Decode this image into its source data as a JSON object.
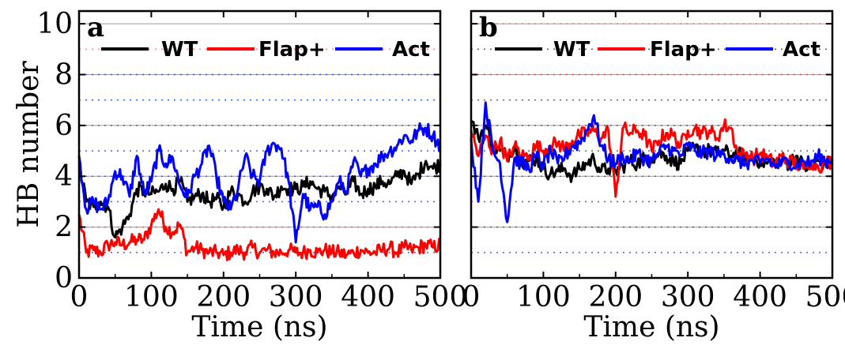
{
  "chart_data": [
    {
      "type": "line",
      "panel_label": "a",
      "xlabel": "Time (ns)",
      "ylabel": "HB number",
      "xlim": [
        0,
        500
      ],
      "ylim": [
        0,
        10.5
      ],
      "xticks": [
        "0",
        "100",
        "200",
        "300",
        "400",
        "500"
      ],
      "yticks": [
        "0",
        "2",
        "4",
        "6",
        "8",
        "10"
      ],
      "grid": "horizontal dotted",
      "legend_placement": "top",
      "x": [
        0,
        10,
        20,
        30,
        40,
        50,
        60,
        70,
        80,
        90,
        100,
        110,
        120,
        130,
        140,
        150,
        160,
        170,
        180,
        190,
        200,
        210,
        220,
        230,
        240,
        250,
        260,
        270,
        280,
        290,
        300,
        310,
        320,
        330,
        340,
        350,
        360,
        370,
        380,
        390,
        400,
        410,
        420,
        430,
        440,
        450,
        460,
        470,
        480,
        490,
        500
      ],
      "series": [
        {
          "name": "WT",
          "color": "#000000",
          "values": [
            4.5,
            3.0,
            2.8,
            3.0,
            2.8,
            1.6,
            2.0,
            2.5,
            3.5,
            3.4,
            3.3,
            3.4,
            3.7,
            3.5,
            3.8,
            3.0,
            3.2,
            3.3,
            3.0,
            3.1,
            2.8,
            3.4,
            3.3,
            3.0,
            3.4,
            3.6,
            3.5,
            3.2,
            3.6,
            3.5,
            3.5,
            3.6,
            3.8,
            3.5,
            3.4,
            3.2,
            3.6,
            3.3,
            3.8,
            3.3,
            3.5,
            3.6,
            3.8,
            3.7,
            4.0,
            4.2,
            3.7,
            4.1,
            4.6,
            4.3,
            4.5
          ]
        },
        {
          "name": "Flap+",
          "color": "#ff0000",
          "values": [
            2.5,
            1.0,
            1.1,
            1.0,
            1.3,
            1.4,
            1.3,
            1.4,
            1.5,
            1.5,
            2.1,
            2.7,
            2.0,
            1.8,
            2.1,
            1.0,
            1.2,
            1.1,
            1.0,
            1.0,
            0.9,
            1.0,
            1.1,
            1.0,
            1.2,
            1.0,
            1.1,
            1.0,
            1.0,
            1.1,
            1.0,
            1.0,
            1.1,
            1.0,
            1.1,
            1.0,
            1.0,
            0.9,
            1.0,
            1.1,
            1.0,
            1.0,
            1.1,
            1.2,
            1.0,
            1.2,
            1.1,
            1.2,
            1.3,
            1.2,
            1.3
          ]
        },
        {
          "name": "Act",
          "color": "#0000ff",
          "values": [
            4.8,
            2.7,
            3.0,
            2.7,
            3.0,
            4.2,
            4.0,
            3.2,
            4.8,
            3.3,
            3.8,
            5.0,
            4.5,
            4.7,
            3.6,
            3.2,
            4.0,
            4.5,
            5.2,
            4.0,
            3.0,
            2.7,
            3.5,
            4.8,
            4.0,
            3.8,
            5.0,
            5.3,
            5.1,
            3.8,
            1.4,
            3.3,
            2.7,
            2.8,
            2.5,
            3.0,
            3.8,
            3.4,
            4.6,
            4.0,
            4.3,
            4.5,
            4.8,
            5.0,
            5.2,
            5.6,
            5.4,
            5.8,
            5.9,
            5.6,
            5.2
          ]
        }
      ],
      "scatter_levels": [
        {
          "y": 1,
          "color": "#2030ff"
        },
        {
          "y": 2,
          "color": "#ff3030"
        },
        {
          "y": 3,
          "color": "#2030ff"
        },
        {
          "y": 4,
          "color": "#2030ff"
        },
        {
          "y": 5,
          "color": "#2030ff"
        },
        {
          "y": 6,
          "color": "#404040"
        },
        {
          "y": 7,
          "color": "#2030ff"
        },
        {
          "y": 8,
          "color": "#2030ff"
        },
        {
          "y": 9,
          "color": "#ff6060"
        }
      ]
    },
    {
      "type": "line",
      "panel_label": "b",
      "xlabel": "Time (ns)",
      "ylabel": "",
      "xlim": [
        0,
        500
      ],
      "ylim": [
        0,
        10.5
      ],
      "xticks": [
        "0",
        "100",
        "200",
        "300",
        "400",
        "500"
      ],
      "yticks": [],
      "grid": "horizontal dotted",
      "legend_placement": "top",
      "x": [
        0,
        10,
        20,
        30,
        40,
        50,
        60,
        70,
        80,
        90,
        100,
        110,
        120,
        130,
        140,
        150,
        160,
        170,
        180,
        190,
        200,
        210,
        220,
        230,
        240,
        250,
        260,
        270,
        280,
        290,
        300,
        310,
        320,
        330,
        340,
        350,
        360,
        370,
        380,
        390,
        400,
        410,
        420,
        430,
        440,
        450,
        460,
        470,
        480,
        490,
        500
      ],
      "series": [
        {
          "name": "WT",
          "color": "#000000",
          "values": [
            6.2,
            5.5,
            6.0,
            5.2,
            5.0,
            4.8,
            5.2,
            4.6,
            4.6,
            4.7,
            4.3,
            4.1,
            4.2,
            4.3,
            4.0,
            4.3,
            4.5,
            4.7,
            4.2,
            4.3,
            4.2,
            4.4,
            4.6,
            4.5,
            4.7,
            4.7,
            4.9,
            4.8,
            4.6,
            4.5,
            5.0,
            5.1,
            5.0,
            5.0,
            4.9,
            5.0,
            4.8,
            4.9,
            4.6,
            4.7,
            4.6,
            4.5,
            4.6,
            4.6,
            4.5,
            4.8,
            4.4,
            4.3,
            4.6,
            4.5,
            4.5
          ]
        },
        {
          "name": "Flap+",
          "color": "#ff0000",
          "values": [
            5.8,
            4.8,
            5.6,
            5.0,
            5.4,
            4.6,
            5.2,
            4.8,
            4.8,
            5.2,
            5.0,
            5.2,
            5.3,
            5.1,
            5.4,
            5.6,
            5.7,
            5.8,
            5.5,
            5.8,
            3.2,
            5.9,
            5.7,
            5.8,
            5.6,
            5.0,
            5.4,
            5.7,
            5.6,
            5.2,
            5.8,
            5.9,
            5.7,
            5.8,
            5.5,
            6.0,
            5.9,
            4.8,
            4.9,
            4.7,
            4.9,
            4.7,
            4.5,
            4.8,
            4.6,
            4.5,
            4.3,
            4.6,
            4.4,
            4.5,
            4.6
          ]
        },
        {
          "name": "Act",
          "color": "#0000ff",
          "values": [
            5.5,
            3.0,
            6.9,
            5.0,
            4.5,
            2.2,
            4.7,
            4.5,
            4.3,
            4.8,
            4.4,
            5.0,
            4.5,
            4.8,
            5.2,
            5.3,
            5.8,
            6.4,
            5.2,
            4.7,
            4.5,
            4.8,
            4.6,
            4.9,
            4.7,
            4.6,
            4.9,
            5.2,
            5.0,
            4.8,
            5.2,
            5.0,
            4.9,
            5.0,
            4.8,
            4.9,
            4.7,
            4.6,
            4.5,
            4.6,
            4.5,
            4.7,
            4.4,
            4.5,
            4.6,
            4.4,
            4.6,
            4.5,
            4.8,
            4.6,
            4.7
          ]
        }
      ],
      "scatter_levels": [
        {
          "y": 1,
          "color": "#2030ff"
        },
        {
          "y": 2,
          "color": "#303030"
        },
        {
          "y": 3,
          "color": "#404040"
        },
        {
          "y": 4,
          "color": "#404040"
        },
        {
          "y": 5,
          "color": "#404040"
        },
        {
          "y": 6,
          "color": "#404040"
        },
        {
          "y": 7,
          "color": "#404040"
        },
        {
          "y": 8,
          "color": "#ff3030"
        },
        {
          "y": 9,
          "color": "#303030"
        },
        {
          "y": 10,
          "color": "#ff6060"
        }
      ]
    }
  ]
}
